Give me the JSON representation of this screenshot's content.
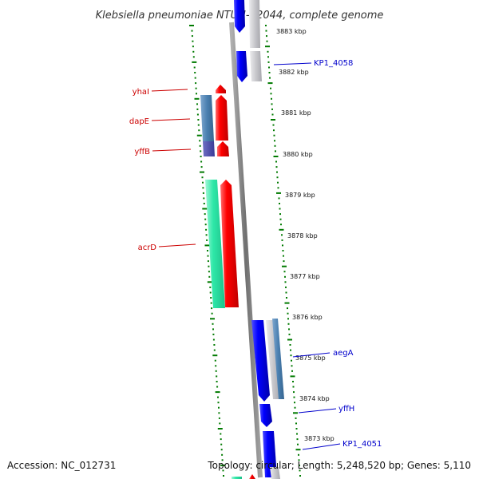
{
  "title": "Klebsiella pneumoniae NTUH-K2044, complete genome",
  "accession": "Accession: NC_012731",
  "topology": "Topology: circular; Length: 5,248,520 bp; Genes: 5,110",
  "kbp_labels": [
    "3883 kbp",
    "3882 kbp",
    "3881 kbp",
    "3880 kbp",
    "3879 kbp",
    "3878 kbp",
    "3877 kbp",
    "3876 kbp",
    "3875 kbp",
    "3874 kbp",
    "3873 kbp"
  ],
  "genes": {
    "left": [
      "yhaI",
      "dapE",
      "yffB",
      "acrD"
    ],
    "right": [
      "KP1_4058",
      "aegA",
      "yffH",
      "KP1_4051"
    ]
  },
  "colors": {
    "forward_cds": "#ff0000",
    "reverse_cds": "#0000ff",
    "steelblue_track": "#4a7fb0",
    "cyan_track": "#2ee8a8",
    "gray_track": "#c8c8cc",
    "backbone": "#808080",
    "ticks": "#007a00"
  }
}
